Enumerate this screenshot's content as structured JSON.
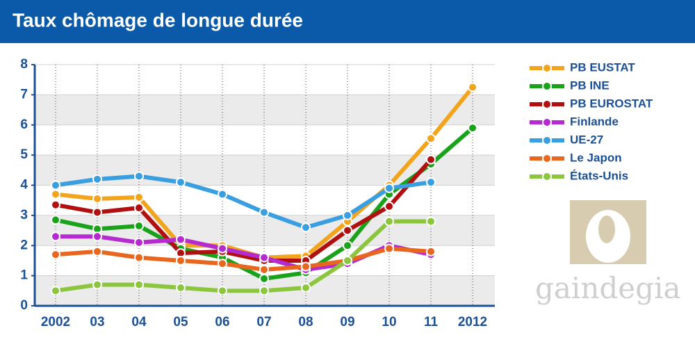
{
  "chart_data": {
    "type": "line",
    "title": "Taux chômage de longue durée",
    "categories": [
      "2002",
      "03",
      "04",
      "05",
      "06",
      "07",
      "08",
      "09",
      "10",
      "11",
      "2012"
    ],
    "ylim": [
      0,
      8
    ],
    "yticks": [
      0,
      1,
      2,
      3,
      4,
      5,
      6,
      7,
      8
    ],
    "grid": true,
    "legend": "right",
    "logo": "gaindegia",
    "series": [
      {
        "name": "PB EUSTAT",
        "color": "#f2a51c",
        "values": [
          3.7,
          3.55,
          3.6,
          2.0,
          2.0,
          1.6,
          1.65,
          2.8,
          4.0,
          5.55,
          7.25
        ]
      },
      {
        "name": "PB INE",
        "color": "#1aa31a",
        "values": [
          2.85,
          2.55,
          2.65,
          1.9,
          1.6,
          0.9,
          1.1,
          2.0,
          3.7,
          4.7,
          5.9
        ]
      },
      {
        "name": "PB EUROSTAT",
        "color": "#b0100f",
        "values": [
          3.35,
          3.1,
          3.25,
          1.75,
          1.8,
          1.5,
          1.5,
          2.5,
          3.3,
          4.85,
          null
        ]
      },
      {
        "name": "Finlande",
        "color": "#b52bd0",
        "values": [
          2.3,
          2.3,
          2.1,
          2.2,
          1.9,
          1.6,
          1.2,
          1.4,
          2.0,
          1.7,
          null
        ]
      },
      {
        "name": "UE-27",
        "color": "#3a9fe0",
        "values": [
          4.0,
          4.2,
          4.3,
          4.1,
          3.7,
          3.1,
          2.6,
          3.0,
          3.9,
          4.1,
          null
        ]
      },
      {
        "name": "Le Japon",
        "color": "#e8661e",
        "values": [
          1.7,
          1.8,
          1.6,
          1.5,
          1.4,
          1.2,
          1.3,
          1.5,
          1.9,
          1.8,
          null
        ]
      },
      {
        "name": "États-Unis",
        "color": "#8cc63f",
        "values": [
          0.5,
          0.7,
          0.7,
          0.6,
          0.5,
          0.5,
          0.6,
          1.5,
          2.8,
          2.8,
          null
        ]
      }
    ]
  }
}
